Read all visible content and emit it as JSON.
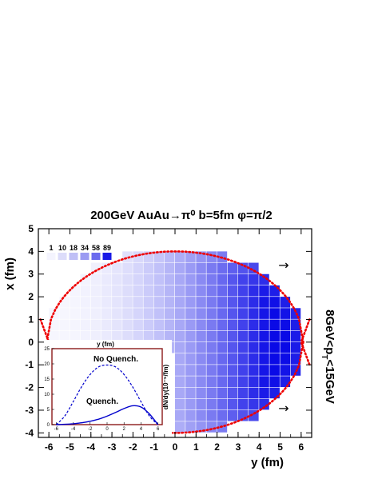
{
  "chart_data": [
    {
      "type": "heatmap",
      "title": "200GeV  AuAu→π⁰  b=5fm  φ=π/2",
      "xlabel": "y (fm)",
      "ylabel": "x (fm)",
      "side_label": "8GeV<p_T<15GeV",
      "xlim": [
        -6.5,
        6.5
      ],
      "ylim": [
        -4.2,
        5
      ],
      "x_ticks": [
        "-6",
        "-5",
        "-4",
        "-3",
        "-2",
        "-1",
        "0",
        "1",
        "2",
        "3",
        "4",
        "5",
        "6"
      ],
      "y_ticks": [
        "-4",
        "-3",
        "-2",
        "-1",
        "0",
        "1",
        "2",
        "3",
        "4",
        "5"
      ],
      "color_scale": {
        "labels": [
          "1",
          "10",
          "18",
          "34",
          "58",
          "89"
        ],
        "colors": [
          "#f4f4fe",
          "#dcdcfa",
          "#bfbff6",
          "#9a9af2",
          "#6a6aee",
          "#1a1ae6"
        ]
      },
      "overlap_boundary": {
        "x_half_width": 6.1,
        "y_half_height": 4.0,
        "color": "#ee0000",
        "style": "dotted"
      },
      "arrows": [
        "→",
        "→"
      ],
      "accent": "#0000ff"
    },
    {
      "type": "line",
      "xlabel": "y (fm)",
      "ylabel": "dN/dy(10⁻⁵/fm)",
      "xlim": [
        -6.5,
        6.5
      ],
      "ylim": [
        0,
        25
      ],
      "x_ticks": [
        "-6",
        "-4",
        "-2",
        "0",
        "2",
        "4",
        "6"
      ],
      "y_ticks": [
        "0",
        "5",
        "10",
        "15",
        "20",
        "25"
      ],
      "series": [
        {
          "name": "No Quench.",
          "style": "dashed",
          "x": [
            -6,
            -5,
            -4,
            -3,
            -2,
            -1,
            0,
            1,
            2,
            3,
            4,
            5,
            6
          ],
          "y": [
            0,
            2.8,
            7.5,
            12.5,
            16.5,
            19.0,
            19.6,
            19.0,
            16.5,
            12.5,
            7.5,
            2.8,
            0
          ]
        },
        {
          "name": "Quench.",
          "style": "solid",
          "x": [
            -6,
            -5,
            -4,
            -3,
            -2,
            -1,
            0,
            1,
            2,
            3,
            4,
            5,
            6
          ],
          "y": [
            0,
            0.1,
            0.3,
            0.6,
            1.1,
            1.8,
            2.8,
            4.0,
            5.3,
            6.2,
            5.8,
            3.5,
            0
          ]
        }
      ]
    }
  ]
}
